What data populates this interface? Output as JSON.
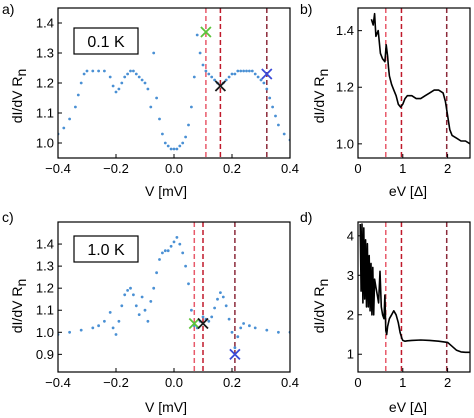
{
  "colors": {
    "data_blue": "#4a90d4",
    "black": "#000000",
    "dash_pink": "#e85a6a",
    "dash_red": "#c0192b",
    "dash_brown": "#8c2a3a",
    "cross_green": "#5cc43a",
    "cross_black": "#1a1a1a",
    "cross_blue": "#3a4ad8"
  },
  "chart_data": [
    {
      "panel": "a)",
      "type": "scatter",
      "annotation": "0.1 K",
      "xlabel": "V [mV]",
      "ylabel": "dI/dV R",
      "ylabel_sub": "n",
      "xlim": [
        -0.4,
        0.4
      ],
      "ylim": [
        0.95,
        1.45
      ],
      "xticks": [
        -0.4,
        -0.2,
        0,
        0.2,
        0.4
      ],
      "xtick_labels": [
        "−0.4",
        "−0.2",
        "0.0",
        "0.2",
        "0.4"
      ],
      "yticks": [
        1.0,
        1.1,
        1.2,
        1.3,
        1.4
      ],
      "ytick_labels": [
        "1.0",
        "1.1",
        "1.2",
        "1.3",
        "1.4"
      ],
      "series_color": "data_blue",
      "x": [
        -0.4,
        -0.38,
        -0.36,
        -0.34,
        -0.33,
        -0.32,
        -0.31,
        -0.3,
        -0.28,
        -0.26,
        -0.24,
        -0.22,
        -0.21,
        -0.2,
        -0.19,
        -0.18,
        -0.17,
        -0.16,
        -0.15,
        -0.14,
        -0.13,
        -0.12,
        -0.11,
        -0.1,
        -0.09,
        -0.08,
        -0.07,
        -0.06,
        -0.05,
        -0.04,
        -0.03,
        -0.02,
        -0.01,
        0.0,
        0.01,
        0.02,
        0.03,
        0.04,
        0.05,
        0.06,
        0.07,
        0.08,
        0.09,
        0.1,
        0.11,
        0.12,
        0.13,
        0.14,
        0.15,
        0.16,
        0.17,
        0.18,
        0.19,
        0.2,
        0.21,
        0.22,
        0.23,
        0.24,
        0.25,
        0.26,
        0.27,
        0.28,
        0.29,
        0.3,
        0.31,
        0.32,
        0.33,
        0.34,
        0.35,
        0.36,
        0.38,
        0.4
      ],
      "y": [
        1.03,
        1.05,
        1.08,
        1.12,
        1.16,
        1.2,
        1.23,
        1.24,
        1.24,
        1.24,
        1.24,
        1.22,
        1.19,
        1.17,
        1.18,
        1.2,
        1.22,
        1.23,
        1.24,
        1.24,
        1.23,
        1.22,
        1.21,
        1.2,
        1.18,
        1.12,
        1.3,
        1.15,
        1.08,
        1.03,
        1.0,
        0.99,
        0.98,
        0.98,
        0.98,
        0.99,
        1.0,
        1.02,
        1.06,
        1.12,
        1.22,
        1.36,
        1.3,
        1.26,
        1.24,
        1.23,
        1.22,
        1.21,
        1.2,
        1.19,
        1.2,
        1.21,
        1.22,
        1.23,
        1.23,
        1.24,
        1.24,
        1.24,
        1.24,
        1.24,
        1.24,
        1.23,
        1.22,
        1.21,
        1.2,
        1.18,
        1.15,
        1.12,
        1.09,
        1.06,
        1.03,
        1.01
      ],
      "markers": [
        {
          "x": 0.11,
          "y": 1.37,
          "color": "cross_green"
        },
        {
          "x": 0.16,
          "y": 1.19,
          "color": "cross_black"
        },
        {
          "x": 0.32,
          "y": 1.23,
          "color": "cross_blue"
        }
      ],
      "vlines": [
        {
          "x": 0.11,
          "color": "dash_pink"
        },
        {
          "x": 0.16,
          "color": "dash_red"
        },
        {
          "x": 0.32,
          "color": "dash_brown"
        }
      ]
    },
    {
      "panel": "b)",
      "type": "line",
      "xlabel": "eV [Δ]",
      "ylabel": "dI/dV R",
      "ylabel_sub": "n",
      "xlim": [
        0,
        2.5
      ],
      "ylim": [
        0.95,
        1.48
      ],
      "xticks": [
        0,
        1,
        2
      ],
      "xtick_labels": [
        "0",
        "1",
        "2"
      ],
      "yticks": [
        1.0,
        1.2,
        1.4
      ],
      "ytick_labels": [
        "1.0",
        "1.2",
        "1.4"
      ],
      "series_color": "black",
      "x": [
        0.3,
        0.34,
        0.37,
        0.4,
        0.45,
        0.5,
        0.55,
        0.6,
        0.63,
        0.66,
        0.68,
        0.7,
        0.75,
        0.8,
        0.85,
        0.9,
        0.95,
        1.0,
        1.05,
        1.1,
        1.2,
        1.3,
        1.4,
        1.5,
        1.6,
        1.7,
        1.8,
        1.9,
        1.95,
        2.0,
        2.05,
        2.1,
        2.2,
        2.3,
        2.4,
        2.5
      ],
      "y": [
        1.44,
        1.42,
        1.46,
        1.38,
        1.4,
        1.32,
        1.3,
        1.29,
        1.35,
        1.31,
        1.27,
        1.24,
        1.21,
        1.19,
        1.17,
        1.14,
        1.13,
        1.14,
        1.16,
        1.17,
        1.17,
        1.16,
        1.16,
        1.17,
        1.18,
        1.19,
        1.19,
        1.18,
        1.15,
        1.1,
        1.05,
        1.03,
        1.02,
        1.01,
        1.01,
        1.0
      ],
      "vlines": [
        {
          "x": 0.62,
          "color": "dash_pink"
        },
        {
          "x": 0.97,
          "color": "dash_red"
        },
        {
          "x": 1.98,
          "color": "dash_brown"
        }
      ]
    },
    {
      "panel": "c)",
      "type": "scatter",
      "annotation": "1.0 K",
      "xlabel": "V [mV]",
      "ylabel": "dI/dV R",
      "ylabel_sub": "n",
      "xlim": [
        -0.4,
        0.4
      ],
      "ylim": [
        0.82,
        1.5
      ],
      "xticks": [
        -0.4,
        -0.2,
        0,
        0.2,
        0.4
      ],
      "xtick_labels": [
        "−0.4",
        "−0.2",
        "0.0",
        "0.2",
        "0.4"
      ],
      "yticks": [
        0.9,
        1.0,
        1.1,
        1.2,
        1.3,
        1.4
      ],
      "ytick_labels": [
        "0.9",
        "1.0",
        "1.1",
        "1.2",
        "1.3",
        "1.4"
      ],
      "series_color": "data_blue",
      "x": [
        -0.4,
        -0.36,
        -0.32,
        -0.28,
        -0.26,
        -0.24,
        -0.22,
        -0.21,
        -0.2,
        -0.19,
        -0.18,
        -0.17,
        -0.16,
        -0.15,
        -0.14,
        -0.13,
        -0.12,
        -0.11,
        -0.1,
        -0.09,
        -0.08,
        -0.07,
        -0.06,
        -0.05,
        -0.04,
        -0.03,
        -0.02,
        -0.01,
        0.0,
        0.01,
        0.02,
        0.03,
        0.04,
        0.05,
        0.06,
        0.07,
        0.08,
        0.09,
        0.1,
        0.11,
        0.12,
        0.13,
        0.14,
        0.15,
        0.16,
        0.17,
        0.18,
        0.19,
        0.2,
        0.21,
        0.22,
        0.23,
        0.24,
        0.26,
        0.28,
        0.32,
        0.36,
        0.4
      ],
      "y": [
        0.99,
        1.0,
        1.01,
        1.02,
        1.03,
        1.05,
        1.09,
        1.02,
        0.99,
        1.05,
        1.12,
        1.17,
        1.19,
        1.2,
        1.17,
        1.12,
        1.08,
        1.16,
        1.1,
        1.05,
        1.14,
        1.2,
        1.27,
        1.33,
        1.36,
        1.37,
        1.37,
        1.39,
        1.41,
        1.43,
        1.4,
        1.36,
        1.3,
        1.22,
        1.1,
        1.03,
        1.02,
        1.05,
        1.07,
        1.06,
        1.05,
        1.07,
        1.11,
        1.15,
        1.18,
        1.16,
        1.12,
        1.06,
        1.0,
        0.93,
        0.98,
        1.02,
        1.04,
        1.03,
        1.02,
        1.01,
        1.0,
        1.0
      ],
      "markers": [
        {
          "x": 0.07,
          "y": 1.04,
          "color": "cross_green"
        },
        {
          "x": 0.1,
          "y": 1.04,
          "color": "cross_black"
        },
        {
          "x": 0.21,
          "y": 0.9,
          "color": "cross_blue"
        }
      ],
      "vlines": [
        {
          "x": 0.07,
          "color": "dash_pink"
        },
        {
          "x": 0.1,
          "color": "dash_red"
        },
        {
          "x": 0.21,
          "color": "dash_brown"
        }
      ]
    },
    {
      "panel": "d)",
      "type": "line",
      "xlabel": "eV [Δ]",
      "ylabel": "dI/dV R",
      "ylabel_sub": "n",
      "xlim": [
        0,
        2.5
      ],
      "ylim": [
        0.55,
        4.35
      ],
      "xticks": [
        0,
        1,
        2
      ],
      "xtick_labels": [
        "0",
        "1",
        "2"
      ],
      "yticks": [
        1,
        2,
        3,
        4
      ],
      "ytick_labels": [
        "1",
        "2",
        "3",
        "4"
      ],
      "series_color": "black",
      "x": [
        0.05,
        0.07,
        0.09,
        0.11,
        0.13,
        0.15,
        0.17,
        0.19,
        0.21,
        0.23,
        0.25,
        0.27,
        0.29,
        0.31,
        0.33,
        0.35,
        0.37,
        0.4,
        0.43,
        0.46,
        0.49,
        0.52,
        0.55,
        0.58,
        0.6,
        0.62,
        0.64,
        0.66,
        0.7,
        0.75,
        0.8,
        0.85,
        0.9,
        0.94,
        0.98,
        1.0,
        1.05,
        1.1,
        1.2,
        1.4,
        1.6,
        1.8,
        2.0,
        2.1,
        2.2,
        2.3,
        2.4,
        2.5
      ],
      "y": [
        4.3,
        2.6,
        4.3,
        2.3,
        4.2,
        2.4,
        3.9,
        2.2,
        3.8,
        2.2,
        3.5,
        2.1,
        3.3,
        2.0,
        3.2,
        2.0,
        2.9,
        2.7,
        2.5,
        2.3,
        3.1,
        2.2,
        2.0,
        1.9,
        2.5,
        1.6,
        1.5,
        1.7,
        1.9,
        2.0,
        2.1,
        2.0,
        1.8,
        1.55,
        1.4,
        1.35,
        1.33,
        1.34,
        1.35,
        1.36,
        1.35,
        1.33,
        1.3,
        1.2,
        1.1,
        1.06,
        1.05,
        1.05
      ],
      "vlines": [
        {
          "x": 0.62,
          "color": "dash_pink"
        },
        {
          "x": 0.97,
          "color": "dash_red"
        },
        {
          "x": 1.98,
          "color": "dash_brown"
        }
      ]
    }
  ]
}
